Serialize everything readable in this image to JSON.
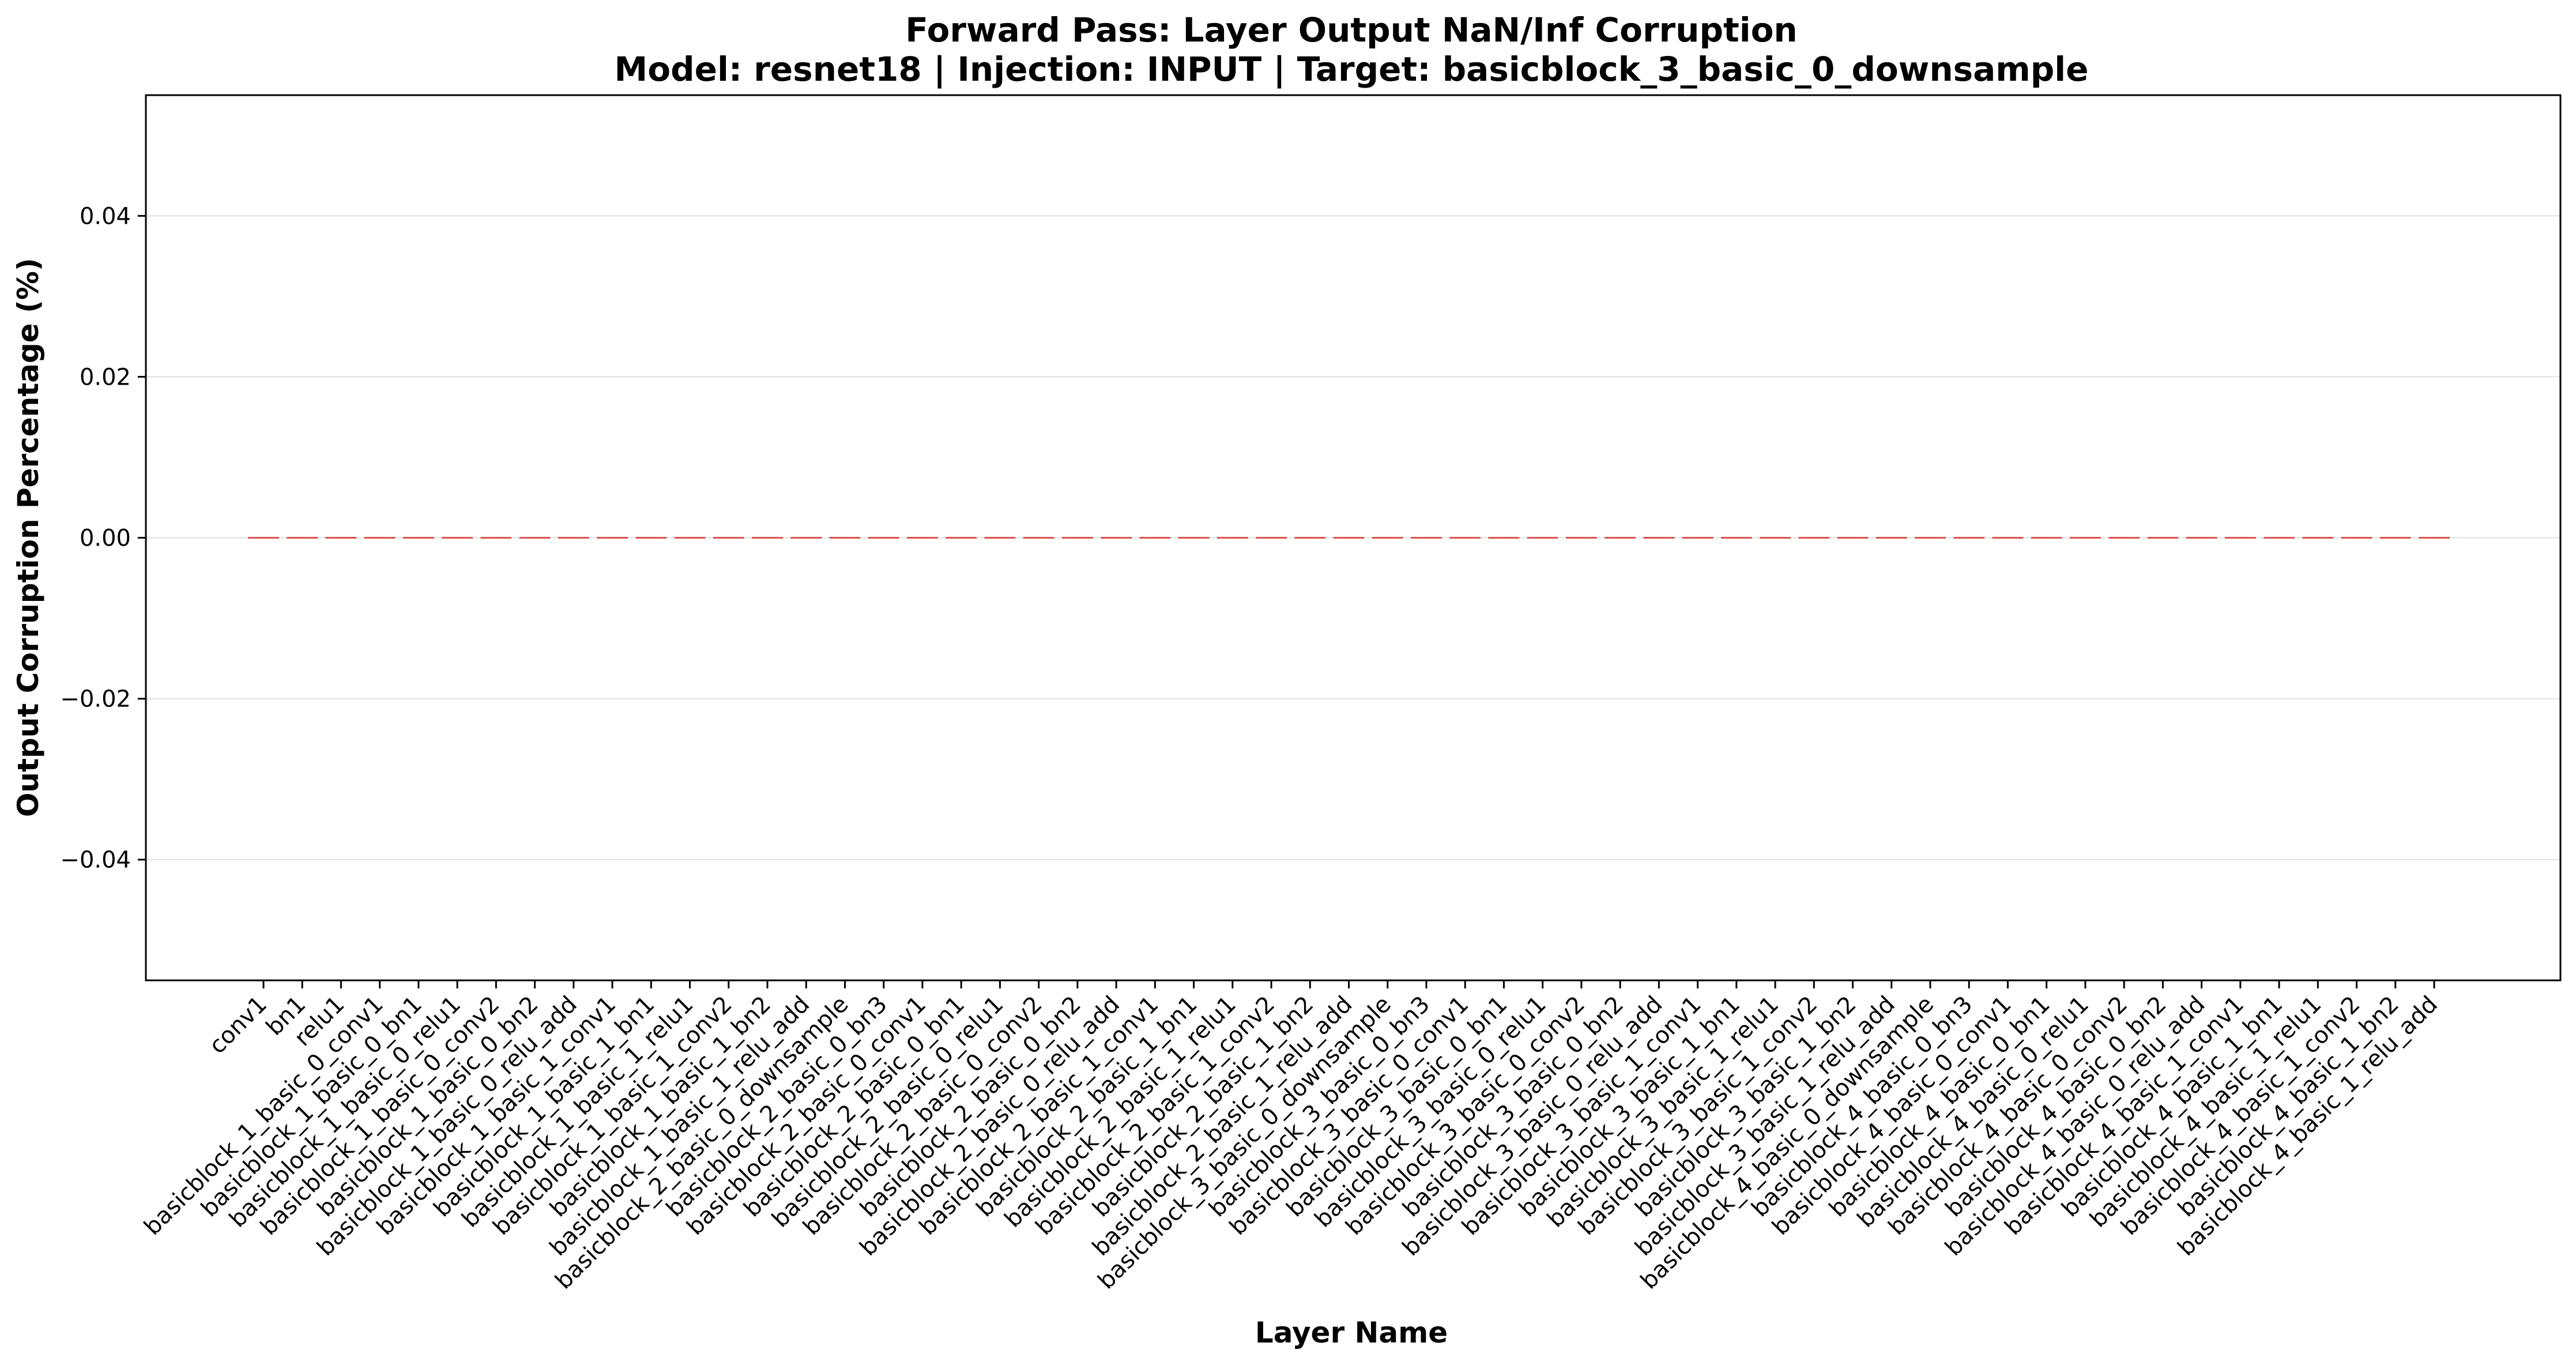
{
  "chart_data": {
    "type": "bar",
    "title_line1": "Forward Pass: Layer Output NaN/Inf Corruption",
    "title_line2": "Model: resnet18 | Injection: INPUT | Target: basicblock_3_basic_0_downsample",
    "xlabel": "Layer Name",
    "ylabel": "Output Corruption Percentage (%)",
    "ylim": [
      -0.055,
      0.055
    ],
    "yticks": [
      0.04,
      0.02,
      0.0,
      -0.02,
      -0.04
    ],
    "ytick_labels": [
      "0.04",
      "0.02",
      "0.00",
      "−0.02",
      "−0.04"
    ],
    "grid": "horizontal",
    "bar_color": "#d9534f",
    "categories": [
      "conv1",
      "bn1",
      "relu1",
      "basicblock_1_basic_0_conv1",
      "basicblock_1_basic_0_bn1",
      "basicblock_1_basic_0_relu1",
      "basicblock_1_basic_0_conv2",
      "basicblock_1_basic_0_bn2",
      "basicblock_1_basic_0_relu_add",
      "basicblock_1_basic_1_conv1",
      "basicblock_1_basic_1_bn1",
      "basicblock_1_basic_1_relu1",
      "basicblock_1_basic_1_conv2",
      "basicblock_1_basic_1_bn2",
      "basicblock_1_basic_1_relu_add",
      "basicblock_2_basic_0_downsample",
      "basicblock_2_basic_0_bn3",
      "basicblock_2_basic_0_conv1",
      "basicblock_2_basic_0_bn1",
      "basicblock_2_basic_0_relu1",
      "basicblock_2_basic_0_conv2",
      "basicblock_2_basic_0_bn2",
      "basicblock_2_basic_0_relu_add",
      "basicblock_2_basic_1_conv1",
      "basicblock_2_basic_1_bn1",
      "basicblock_2_basic_1_relu1",
      "basicblock_2_basic_1_conv2",
      "basicblock_2_basic_1_bn2",
      "basicblock_2_basic_1_relu_add",
      "basicblock_3_basic_0_downsample",
      "basicblock_3_basic_0_bn3",
      "basicblock_3_basic_0_conv1",
      "basicblock_3_basic_0_bn1",
      "basicblock_3_basic_0_relu1",
      "basicblock_3_basic_0_conv2",
      "basicblock_3_basic_0_bn2",
      "basicblock_3_basic_0_relu_add",
      "basicblock_3_basic_1_conv1",
      "basicblock_3_basic_1_bn1",
      "basicblock_3_basic_1_relu1",
      "basicblock_3_basic_1_conv2",
      "basicblock_3_basic_1_bn2",
      "basicblock_3_basic_1_relu_add",
      "basicblock_4_basic_0_downsample",
      "basicblock_4_basic_0_bn3",
      "basicblock_4_basic_0_conv1",
      "basicblock_4_basic_0_bn1",
      "basicblock_4_basic_0_relu1",
      "basicblock_4_basic_0_conv2",
      "basicblock_4_basic_0_bn2",
      "basicblock_4_basic_0_relu_add",
      "basicblock_4_basic_1_conv1",
      "basicblock_4_basic_1_bn1",
      "basicblock_4_basic_1_relu1",
      "basicblock_4_basic_1_conv2",
      "basicblock_4_basic_1_bn2",
      "basicblock_4_basic_1_relu_add"
    ],
    "values": [
      0,
      0,
      0,
      0,
      0,
      0,
      0,
      0,
      0,
      0,
      0,
      0,
      0,
      0,
      0,
      0,
      0,
      0,
      0,
      0,
      0,
      0,
      0,
      0,
      0,
      0,
      0,
      0,
      0,
      0,
      0,
      0,
      0,
      0,
      0,
      0,
      0,
      0,
      0,
      0,
      0,
      0,
      0,
      0,
      0,
      0,
      0,
      0,
      0,
      0,
      0,
      0,
      0,
      0,
      0,
      0,
      0
    ]
  }
}
